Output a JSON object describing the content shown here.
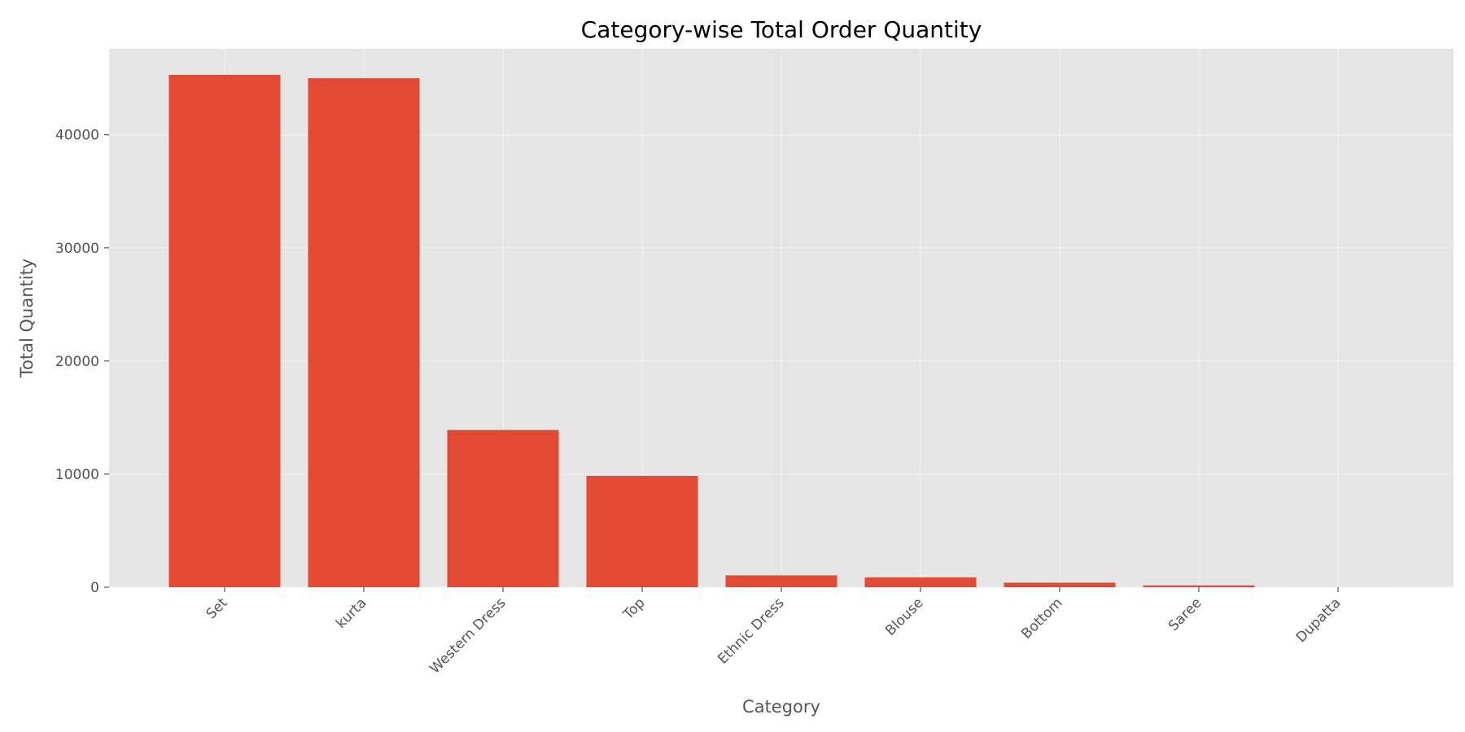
{
  "chart_data": {
    "type": "bar",
    "title": "Category-wise Total Order Quantity",
    "xlabel": "Category",
    "ylabel": "Total Quantity",
    "categories": [
      "Set",
      "kurta",
      "Western Dress",
      "Top",
      "Ethnic Dress",
      "Blouse",
      "Bottom",
      "Saree",
      "Dupatta"
    ],
    "values": [
      45300,
      45000,
      13900,
      9850,
      1050,
      870,
      400,
      160,
      3
    ],
    "ylim": [
      0,
      47600
    ],
    "yticks": [
      0,
      10000,
      20000,
      30000,
      40000
    ],
    "grid": true,
    "bar_color": "#E24A33",
    "plot_background": "#E5E5E5",
    "grid_color": "#F2F2F2"
  }
}
